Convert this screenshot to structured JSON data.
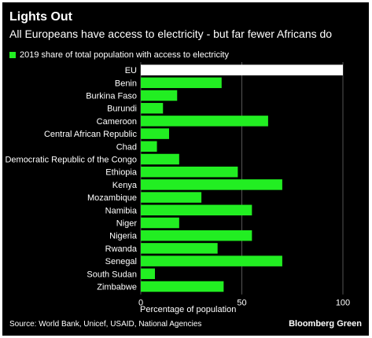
{
  "header": {
    "title": "Lights Out",
    "subtitle": "All Europeans have access to electricity - but far fewer Africans do"
  },
  "legend": {
    "label": "2019 share of total population with access to electricity",
    "color": "#22ee22"
  },
  "footer": {
    "source": "Source: World Bank, Unicef, USAID, National Agencies",
    "brand": "Bloomberg Green"
  },
  "colors": {
    "background": "#000000",
    "highlight": "#ffffff",
    "bar": "#22ee22"
  },
  "chart_data": {
    "type": "bar",
    "orientation": "horizontal",
    "categories": [
      "EU",
      "Benin",
      "Burkina Faso",
      "Burundi",
      "Cameroon",
      "Central African Republic",
      "Chad",
      "Democratic Republic of the Congo",
      "Ethiopia",
      "Kenya",
      "Mozambique",
      "Namibia",
      "Niger",
      "Nigeria",
      "Rwanda",
      "Senegal",
      "South Sudan",
      "Zimbabwe"
    ],
    "values": [
      100,
      40,
      18,
      11,
      63,
      14,
      8,
      19,
      48,
      70,
      30,
      55,
      19,
      55,
      38,
      70,
      7,
      41
    ],
    "highlight_categories": [
      "EU"
    ],
    "xlabel": "Percentage of population",
    "xlim": [
      0,
      100
    ],
    "xticks": [
      0,
      50,
      100
    ],
    "grid": true,
    "legend_position": "top-left"
  }
}
